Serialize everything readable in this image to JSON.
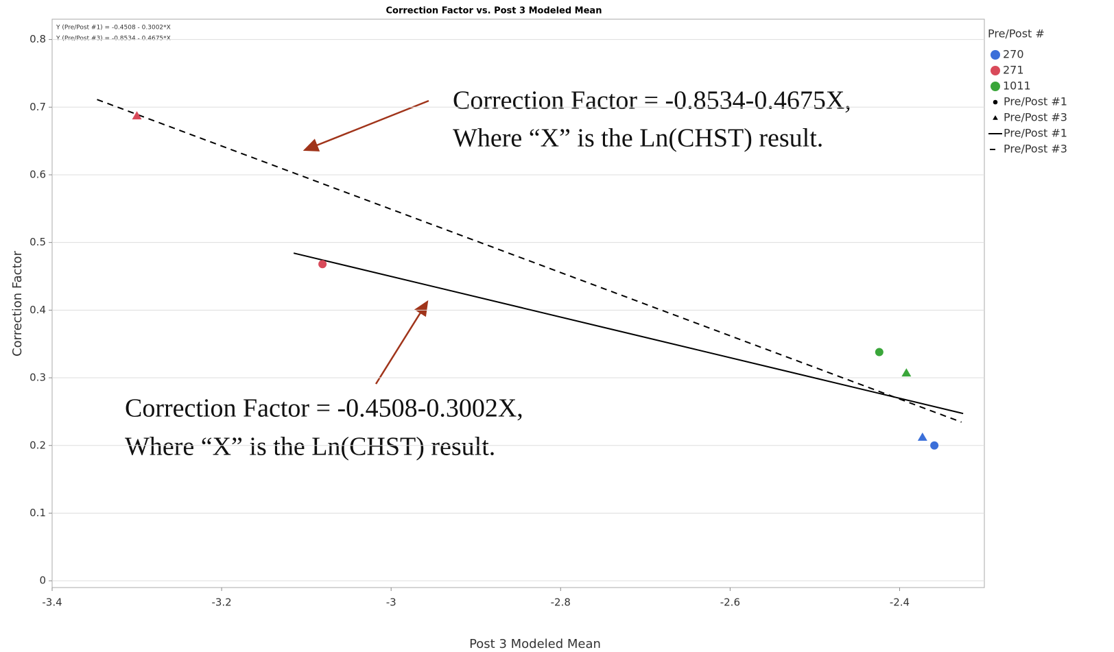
{
  "chart_data": {
    "type": "scatter",
    "title": "Correction Factor vs. Post 3 Modeled Mean",
    "x_label": "Post 3 Modeled Mean",
    "y_label": "Correction Factor",
    "xlim": [
      -3.4,
      -2.3
    ],
    "ylim": [
      -0.01,
      0.83
    ],
    "xticks": [
      -3.4,
      -3.2,
      -3.0,
      -2.8,
      -2.6,
      -2.4
    ],
    "yticks": [
      0,
      0.1,
      0.2,
      0.3,
      0.4,
      0.5,
      0.6,
      0.7,
      0.8
    ],
    "grid": true,
    "legend_title": "Pre/Post #",
    "series": [
      {
        "name": "270",
        "color": "#3b6fd9",
        "x": [
          -2.359,
          -2.373
        ],
        "values": [
          0.2,
          0.212
        ],
        "markers": [
          "circle",
          "triangle"
        ]
      },
      {
        "name": "271",
        "color": "#d94a5a",
        "x": [
          -3.081,
          -3.3
        ],
        "values": [
          0.468,
          0.687
        ],
        "markers": [
          "circle",
          "triangle"
        ]
      },
      {
        "name": "1011",
        "color": "#3aa63a",
        "x": [
          -2.424,
          -2.392
        ],
        "values": [
          0.338,
          0.307
        ],
        "markers": [
          "circle",
          "triangle"
        ]
      }
    ],
    "marker_legend": [
      {
        "name": "Pre/Post #1",
        "marker": "circle"
      },
      {
        "name": "Pre/Post #3",
        "marker": "triangle"
      }
    ],
    "fit_lines": [
      {
        "name": "Pre/Post #1",
        "dashed": false,
        "x": [
          -3.115,
          -2.325
        ],
        "values": [
          0.4843,
          0.2472
        ]
      },
      {
        "name": "Pre/Post #3",
        "dashed": true,
        "x": [
          -3.347,
          -2.327
        ],
        "values": [
          0.7113,
          0.2345
        ]
      }
    ],
    "equations": [
      "Y (Pre/Post #1) = -0.4508 - 0.3002*X",
      "Y (Pre/Post #3) = -0.8534 - 0.4675*X"
    ],
    "annotations": [
      {
        "lines": [
          "Correction Factor = -0.8534-0.4675X,",
          "Where “X” is the Ln(CHST) result."
        ]
      },
      {
        "lines": [
          "Correction Factor = -0.4508-0.3002X,",
          "Where “X” is the Ln(CHST) result."
        ]
      }
    ]
  }
}
